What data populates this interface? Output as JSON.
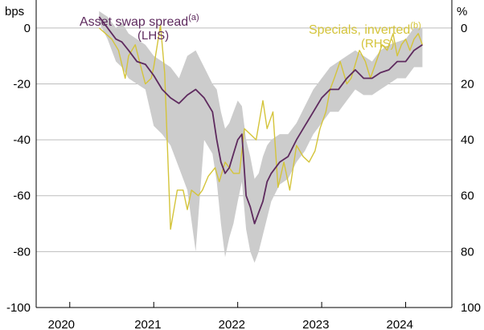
{
  "chart_data": {
    "type": "line",
    "title": "",
    "left_axis": {
      "unit": "bps",
      "ylim": [
        -100,
        10
      ],
      "ticks": [
        0,
        -20,
        -40,
        -60,
        -80,
        -100
      ]
    },
    "right_axis": {
      "unit": "%",
      "inverted": true,
      "ylim": [
        -10,
        100
      ],
      "ticks": [
        0,
        20,
        40,
        60,
        80,
        100
      ]
    },
    "x_axis": {
      "xlim": [
        2019.6,
        2024.55
      ],
      "tick_positions": [
        2020.0,
        2021.0,
        2022.0,
        2023.0,
        2024.0
      ],
      "labels": [
        "2020",
        "2021",
        "2022",
        "2023",
        "2024"
      ],
      "label_positions": [
        2019.9,
        2020.93,
        2021.93,
        2022.93,
        2023.93
      ]
    },
    "series": [
      {
        "name": "Asset swap spread",
        "label_line1": "Asset swap spread",
        "superscript": "(a)",
        "label_line2": "(LHS)",
        "axis": "left",
        "color": "#5e2a5e",
        "x": [
          2020.35,
          2020.45,
          2020.55,
          2020.62,
          2020.7,
          2020.8,
          2020.9,
          2021.0,
          2021.1,
          2021.2,
          2021.3,
          2021.4,
          2021.5,
          2021.6,
          2021.7,
          2021.75,
          2021.8,
          2021.85,
          2021.9,
          2021.95,
          2022.0,
          2022.05,
          2022.1,
          2022.15,
          2022.2,
          2022.25,
          2022.3,
          2022.35,
          2022.4,
          2022.5,
          2022.6,
          2022.7,
          2022.8,
          2022.9,
          2023.0,
          2023.1,
          2023.2,
          2023.3,
          2023.4,
          2023.5,
          2023.6,
          2023.7,
          2023.8,
          2023.9,
          2024.0,
          2024.1,
          2024.2
        ],
        "values": [
          4,
          0,
          -4,
          -5,
          -8,
          -12,
          -13,
          -17,
          -22,
          -25,
          -27,
          -24,
          -22,
          -25,
          -30,
          -40,
          -48,
          -52,
          -50,
          -45,
          -40,
          -38,
          -60,
          -64,
          -70,
          -66,
          -62,
          -55,
          -52,
          -48,
          -46,
          -40,
          -35,
          -30,
          -25,
          -22,
          -22,
          -18,
          -15,
          -18,
          -18,
          -16,
          -15,
          -12,
          -12,
          -8,
          -6
        ]
      },
      {
        "name": "Specials, inverted",
        "label_line1": "Specials, inverted",
        "superscript": "(b)",
        "label_line2": "(RHS)",
        "axis": "right",
        "color": "#d4c43a",
        "x": [
          2020.35,
          2020.5,
          2020.58,
          2020.66,
          2020.7,
          2020.78,
          2020.83,
          2020.9,
          2020.97,
          2021.0,
          2021.08,
          2021.13,
          2021.2,
          2021.28,
          2021.35,
          2021.4,
          2021.45,
          2021.53,
          2021.58,
          2021.65,
          2021.73,
          2021.78,
          2021.85,
          2021.95,
          2022.02,
          2022.08,
          2022.15,
          2022.22,
          2022.3,
          2022.35,
          2022.42,
          2022.48,
          2022.55,
          2022.62,
          2022.7,
          2022.78,
          2022.85,
          2022.92,
          2022.98,
          2023.05,
          2023.1,
          2023.15,
          2023.22,
          2023.3,
          2023.35,
          2023.45,
          2023.52,
          2023.58,
          2023.65,
          2023.72,
          2023.78,
          2023.85,
          2023.9,
          2023.95,
          2024.0,
          2024.05,
          2024.1,
          2024.15,
          2024.2
        ],
        "values": [
          0,
          4,
          8,
          18,
          10,
          6,
          12,
          20,
          18,
          14,
          -1,
          16,
          72,
          58,
          58,
          65,
          58,
          60,
          58,
          53,
          50,
          55,
          48,
          52,
          52,
          36,
          38,
          40,
          26,
          36,
          30,
          57,
          48,
          58,
          42,
          46,
          48,
          44,
          36,
          30,
          22,
          18,
          12,
          20,
          18,
          8,
          12,
          18,
          12,
          6,
          8,
          2,
          10,
          6,
          4,
          8,
          4,
          2,
          6
        ]
      }
    ],
    "band": {
      "name": "range",
      "axis": "left",
      "color": "#cccccc",
      "x": [
        2020.35,
        2020.45,
        2020.55,
        2020.62,
        2020.7,
        2020.8,
        2020.9,
        2021.0,
        2021.1,
        2021.2,
        2021.3,
        2021.4,
        2021.5,
        2021.6,
        2021.7,
        2021.75,
        2021.8,
        2021.85,
        2021.9,
        2021.95,
        2022.0,
        2022.05,
        2022.1,
        2022.15,
        2022.2,
        2022.25,
        2022.3,
        2022.35,
        2022.4,
        2022.5,
        2022.6,
        2022.7,
        2022.8,
        2022.9,
        2023.0,
        2023.1,
        2023.2,
        2023.3,
        2023.4,
        2023.5,
        2023.6,
        2023.7,
        2023.8,
        2023.9,
        2024.0,
        2024.1,
        2024.2
      ],
      "upper": [
        6,
        4,
        0,
        2,
        -2,
        -4,
        -6,
        -10,
        -12,
        -14,
        -18,
        -10,
        -8,
        -14,
        -20,
        -22,
        -30,
        -36,
        -34,
        -30,
        -26,
        -28,
        -40,
        -46,
        -54,
        -52,
        -46,
        -42,
        -40,
        -38,
        -38,
        -34,
        -28,
        -22,
        -18,
        -14,
        -12,
        -10,
        -8,
        -10,
        -12,
        -8,
        -6,
        -5,
        -4,
        0,
        0
      ],
      "lower": [
        2,
        -4,
        -12,
        -14,
        -18,
        -20,
        -22,
        -35,
        -38,
        -42,
        -50,
        -58,
        -80,
        -40,
        -45,
        -55,
        -70,
        -82,
        -75,
        -70,
        -62,
        -55,
        -72,
        -80,
        -84,
        -80,
        -74,
        -68,
        -62,
        -56,
        -54,
        -48,
        -44,
        -38,
        -34,
        -30,
        -30,
        -26,
        -22,
        -24,
        -24,
        -22,
        -20,
        -18,
        -18,
        -14,
        -14
      ]
    }
  }
}
